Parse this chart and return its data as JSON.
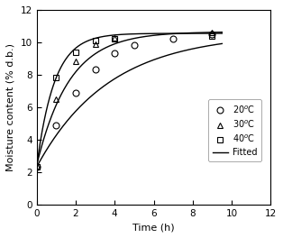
{
  "title": "",
  "xlabel": "Time (h)",
  "ylabel": "Moisture content (% d.b.)",
  "xlim": [
    0,
    12
  ],
  "ylim": [
    0,
    12
  ],
  "xticks": [
    0,
    2,
    4,
    6,
    8,
    10,
    12
  ],
  "yticks": [
    0,
    2,
    4,
    6,
    8,
    10,
    12
  ],
  "data_20": {
    "x": [
      0,
      1,
      2,
      3,
      4,
      5,
      7,
      9
    ],
    "y": [
      2.3,
      4.9,
      6.9,
      8.3,
      9.3,
      9.8,
      10.2,
      10.5
    ]
  },
  "data_30": {
    "x": [
      0,
      1,
      2,
      3,
      4,
      9
    ],
    "y": [
      2.4,
      6.5,
      8.8,
      9.9,
      10.3,
      10.6
    ]
  },
  "data_40": {
    "x": [
      0,
      1,
      2,
      3,
      4,
      9
    ],
    "y": [
      2.3,
      7.8,
      9.4,
      10.1,
      10.2,
      10.4
    ]
  },
  "fit_params_20": {
    "Me": 10.55,
    "k": 0.27,
    "M0": 2.3
  },
  "fit_params_30": {
    "Me": 10.65,
    "k": 0.6,
    "M0": 2.4
  },
  "fit_params_40": {
    "Me": 10.55,
    "k": 1.1,
    "M0": 2.3
  },
  "color": "#000000",
  "marker_size_circle": 5,
  "marker_size_tri": 5,
  "marker_size_square": 4,
  "linewidth": 1.0,
  "legend_fontsize": 7.0
}
